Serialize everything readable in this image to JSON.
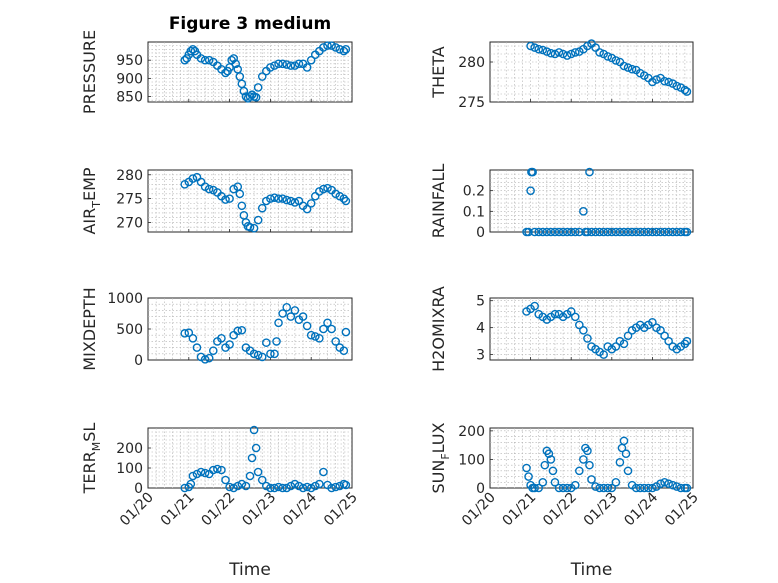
{
  "figure": {
    "title": "Figure 3 medium"
  },
  "colors": {
    "marker": "#0072BD",
    "axis": "#262626"
  },
  "chart_data": [
    {
      "type": "scatter",
      "ylabel": "PRESSURE",
      "xlabel": "",
      "title": "Figure 3 medium",
      "ylim": [
        835,
        1000
      ],
      "yticks": [
        850,
        900,
        950
      ],
      "series": [
        {
          "x": [
            20.9,
            20.95,
            21.0,
            21.05,
            21.1,
            21.15,
            21.2,
            21.3,
            21.4,
            21.5,
            21.6,
            21.7,
            21.8,
            21.9,
            21.95,
            22.0,
            22.05,
            22.1,
            22.15,
            22.2,
            22.25,
            22.3,
            22.35,
            22.4,
            22.45,
            22.5,
            22.55,
            22.6,
            22.65,
            22.7,
            22.8,
            22.9,
            23.0,
            23.1,
            23.2,
            23.3,
            23.4,
            23.5,
            23.6,
            23.7,
            23.8,
            23.9,
            24.0,
            24.1,
            24.2,
            24.3,
            24.4,
            24.5,
            24.6,
            24.7,
            24.8,
            24.85
          ],
          "y": [
            950,
            955,
            965,
            975,
            980,
            975,
            965,
            955,
            950,
            950,
            945,
            935,
            925,
            915,
            920,
            930,
            950,
            955,
            940,
            925,
            905,
            885,
            865,
            850,
            845,
            850,
            855,
            850,
            848,
            875,
            905,
            920,
            930,
            935,
            940,
            940,
            938,
            935,
            935,
            940,
            940,
            930,
            950,
            965,
            975,
            985,
            990,
            990,
            985,
            980,
            975,
            980
          ]
        }
      ],
      "xlim": [
        20,
        25
      ],
      "xticks": [
        "01/20",
        "01/21",
        "01/22",
        "01/23",
        "01/24",
        "01/25"
      ]
    },
    {
      "type": "scatter",
      "ylabel": "THETA",
      "xlabel": "",
      "ylim": [
        275,
        282.5
      ],
      "yticks": [
        275,
        280
      ],
      "series": [
        {
          "x": [
            21.0,
            21.1,
            21.2,
            21.3,
            21.4,
            21.5,
            21.6,
            21.7,
            21.8,
            21.9,
            22.0,
            22.1,
            22.2,
            22.3,
            22.4,
            22.5,
            22.6,
            22.7,
            22.8,
            22.9,
            23.0,
            23.1,
            23.2,
            23.3,
            23.4,
            23.5,
            23.6,
            23.7,
            23.8,
            23.9,
            24.0,
            24.1,
            24.2,
            24.3,
            24.4,
            24.5,
            24.6,
            24.7,
            24.8,
            24.85
          ],
          "y": [
            282.0,
            281.8,
            281.6,
            281.5,
            281.3,
            281.1,
            281.0,
            281.2,
            281.0,
            280.8,
            281.0,
            281.2,
            281.3,
            281.6,
            282.0,
            282.3,
            281.8,
            281.2,
            281.0,
            280.7,
            280.5,
            280.2,
            280.0,
            279.5,
            279.3,
            279.1,
            279.0,
            278.6,
            278.3,
            278.0,
            277.5,
            277.8,
            278.0,
            277.6,
            277.5,
            277.3,
            277.0,
            276.8,
            276.5,
            276.3
          ]
        }
      ],
      "xlim": [
        20,
        25
      ],
      "xticks": [
        "01/20",
        "01/21",
        "01/22",
        "01/23",
        "01/24",
        "01/25"
      ]
    },
    {
      "type": "scatter",
      "ylabel": "AIR_TEMP",
      "xlabel": "",
      "ylim": [
        268,
        281
      ],
      "yticks": [
        270,
        275,
        280
      ],
      "series": [
        {
          "x": [
            20.9,
            21.0,
            21.1,
            21.2,
            21.3,
            21.4,
            21.5,
            21.6,
            21.7,
            21.8,
            21.9,
            22.0,
            22.1,
            22.2,
            22.25,
            22.3,
            22.35,
            22.4,
            22.45,
            22.5,
            22.6,
            22.7,
            22.8,
            22.9,
            23.0,
            23.1,
            23.2,
            23.3,
            23.4,
            23.5,
            23.6,
            23.7,
            23.8,
            23.9,
            24.0,
            24.1,
            24.2,
            24.3,
            24.4,
            24.5,
            24.6,
            24.7,
            24.8,
            24.85
          ],
          "y": [
            278.0,
            278.5,
            279.2,
            279.5,
            278.5,
            277.5,
            277.0,
            276.8,
            276.3,
            275.5,
            274.8,
            275.0,
            277.0,
            277.5,
            276.0,
            273.5,
            271.5,
            270.0,
            269.2,
            269.0,
            268.8,
            270.5,
            273.0,
            274.5,
            275.0,
            275.2,
            275.0,
            275.0,
            274.7,
            274.5,
            274.2,
            274.5,
            273.5,
            272.8,
            274.0,
            275.5,
            276.5,
            277.0,
            277.2,
            276.8,
            276.0,
            275.5,
            275.0,
            274.5
          ]
        }
      ],
      "xlim": [
        20,
        25
      ],
      "xticks": [
        "01/20",
        "01/21",
        "01/22",
        "01/23",
        "01/24",
        "01/25"
      ]
    },
    {
      "type": "scatter",
      "ylabel": "RAINFALL",
      "xlabel": "",
      "ylim": [
        0,
        0.3
      ],
      "yticks": [
        0,
        0.1,
        0.2
      ],
      "series": [
        {
          "x": [
            20.9,
            20.95,
            21.0,
            21.02,
            21.05,
            21.1,
            21.2,
            21.3,
            21.4,
            21.5,
            21.6,
            21.7,
            21.8,
            21.9,
            22.0,
            22.1,
            22.2,
            22.3,
            22.35,
            22.4,
            22.45,
            22.5,
            22.6,
            22.7,
            22.8,
            22.9,
            23.0,
            23.1,
            23.2,
            23.3,
            23.4,
            23.5,
            23.6,
            23.7,
            23.8,
            23.9,
            24.0,
            24.1,
            24.2,
            24.3,
            24.4,
            24.5,
            24.6,
            24.7,
            24.8,
            24.85
          ],
          "y": [
            0,
            0,
            0.2,
            0.29,
            0.29,
            0,
            0,
            0,
            0,
            0,
            0,
            0,
            0,
            0,
            0,
            0,
            0,
            0.1,
            0,
            0,
            0.29,
            0,
            0,
            0,
            0,
            0,
            0,
            0,
            0,
            0,
            0,
            0,
            0,
            0,
            0,
            0,
            0,
            0,
            0,
            0,
            0,
            0,
            0,
            0,
            0,
            0
          ]
        }
      ],
      "xlim": [
        20,
        25
      ],
      "xticks": [
        "01/20",
        "01/21",
        "01/22",
        "01/23",
        "01/24",
        "01/25"
      ]
    },
    {
      "type": "scatter",
      "ylabel": "MIXDEPTH",
      "xlabel": "",
      "ylim": [
        0,
        1000
      ],
      "yticks": [
        0,
        500,
        1000
      ],
      "series": [
        {
          "x": [
            20.9,
            21.0,
            21.1,
            21.2,
            21.3,
            21.4,
            21.5,
            21.6,
            21.7,
            21.8,
            21.9,
            22.0,
            22.1,
            22.2,
            22.3,
            22.4,
            22.5,
            22.6,
            22.7,
            22.8,
            22.9,
            23.0,
            23.1,
            23.15,
            23.2,
            23.3,
            23.4,
            23.5,
            23.6,
            23.7,
            23.8,
            23.9,
            24.0,
            24.1,
            24.2,
            24.3,
            24.4,
            24.5,
            24.6,
            24.7,
            24.8,
            24.85
          ],
          "y": [
            430,
            440,
            350,
            200,
            50,
            10,
            30,
            150,
            300,
            350,
            200,
            250,
            400,
            470,
            480,
            200,
            150,
            100,
            80,
            50,
            280,
            100,
            100,
            300,
            600,
            750,
            850,
            700,
            800,
            650,
            700,
            550,
            400,
            380,
            350,
            500,
            600,
            500,
            300,
            200,
            150,
            450
          ]
        }
      ],
      "xlim": [
        20,
        25
      ],
      "xticks": [
        "01/20",
        "01/21",
        "01/22",
        "01/23",
        "01/24",
        "01/25"
      ]
    },
    {
      "type": "scatter",
      "ylabel": "H2OMIXRA",
      "xlabel": "",
      "ylim": [
        2.8,
        5.1
      ],
      "yticks": [
        3,
        4,
        5
      ],
      "series": [
        {
          "x": [
            20.9,
            21.0,
            21.1,
            21.2,
            21.3,
            21.4,
            21.5,
            21.6,
            21.7,
            21.8,
            21.9,
            22.0,
            22.1,
            22.2,
            22.3,
            22.4,
            22.5,
            22.6,
            22.7,
            22.8,
            22.9,
            23.0,
            23.1,
            23.2,
            23.3,
            23.4,
            23.5,
            23.6,
            23.7,
            23.8,
            23.9,
            24.0,
            24.1,
            24.2,
            24.3,
            24.4,
            24.5,
            24.6,
            24.7,
            24.8,
            24.85
          ],
          "y": [
            4.6,
            4.7,
            4.8,
            4.5,
            4.4,
            4.3,
            4.4,
            4.5,
            4.5,
            4.4,
            4.5,
            4.6,
            4.4,
            4.1,
            3.9,
            3.6,
            3.3,
            3.2,
            3.1,
            3.0,
            3.3,
            3.2,
            3.3,
            3.5,
            3.4,
            3.7,
            3.9,
            4.0,
            4.1,
            4.0,
            4.1,
            4.2,
            4.0,
            3.9,
            3.7,
            3.5,
            3.3,
            3.2,
            3.3,
            3.4,
            3.5
          ]
        }
      ],
      "xlim": [
        20,
        25
      ],
      "xticks": [
        "01/20",
        "01/21",
        "01/22",
        "01/23",
        "01/24",
        "01/25"
      ]
    },
    {
      "type": "scatter",
      "ylabel": "TERR_MSL",
      "xlabel": "Time",
      "ylim": [
        0,
        300
      ],
      "yticks": [
        0,
        100,
        200
      ],
      "series": [
        {
          "x": [
            20.9,
            21.0,
            21.05,
            21.1,
            21.2,
            21.3,
            21.4,
            21.5,
            21.6,
            21.7,
            21.8,
            21.9,
            22.0,
            22.1,
            22.2,
            22.3,
            22.4,
            22.5,
            22.55,
            22.6,
            22.65,
            22.7,
            22.8,
            22.9,
            23.0,
            23.1,
            23.2,
            23.3,
            23.4,
            23.5,
            23.6,
            23.7,
            23.8,
            23.9,
            24.0,
            24.1,
            24.2,
            24.3,
            24.4,
            24.5,
            24.6,
            24.7,
            24.8,
            24.85
          ],
          "y": [
            0,
            5,
            20,
            60,
            70,
            80,
            75,
            70,
            90,
            95,
            90,
            40,
            5,
            0,
            10,
            20,
            10,
            60,
            150,
            290,
            200,
            80,
            40,
            10,
            0,
            0,
            5,
            0,
            0,
            10,
            20,
            10,
            0,
            5,
            0,
            10,
            20,
            80,
            15,
            0,
            5,
            10,
            20,
            15
          ]
        }
      ],
      "xlim": [
        20,
        25
      ],
      "xticks": [
        "01/20",
        "01/21",
        "01/22",
        "01/23",
        "01/24",
        "01/25"
      ]
    },
    {
      "type": "scatter",
      "ylabel": "SUN_FLUX",
      "xlabel": "Time",
      "ylim": [
        0,
        210
      ],
      "yticks": [
        0,
        100,
        200
      ],
      "series": [
        {
          "x": [
            20.9,
            20.95,
            21.0,
            21.05,
            21.1,
            21.2,
            21.3,
            21.35,
            21.4,
            21.45,
            21.5,
            21.55,
            21.6,
            21.7,
            21.8,
            21.9,
            22.0,
            22.1,
            22.2,
            22.3,
            22.35,
            22.4,
            22.45,
            22.5,
            22.6,
            22.7,
            22.8,
            22.9,
            23.0,
            23.1,
            23.2,
            23.25,
            23.3,
            23.35,
            23.4,
            23.5,
            23.6,
            23.7,
            23.8,
            23.9,
            24.0,
            24.1,
            24.2,
            24.3,
            24.4,
            24.5,
            24.6,
            24.7,
            24.8,
            24.85
          ],
          "y": [
            70,
            40,
            10,
            0,
            0,
            0,
            20,
            80,
            130,
            120,
            100,
            60,
            20,
            0,
            0,
            0,
            0,
            10,
            60,
            100,
            140,
            130,
            80,
            30,
            5,
            0,
            0,
            0,
            0,
            20,
            90,
            140,
            165,
            120,
            60,
            10,
            0,
            0,
            0,
            0,
            0,
            5,
            15,
            20,
            15,
            10,
            5,
            0,
            0,
            0
          ]
        }
      ],
      "xlim": [
        20,
        25
      ],
      "xticks": [
        "01/20",
        "01/21",
        "01/22",
        "01/23",
        "01/24",
        "01/25"
      ]
    }
  ]
}
